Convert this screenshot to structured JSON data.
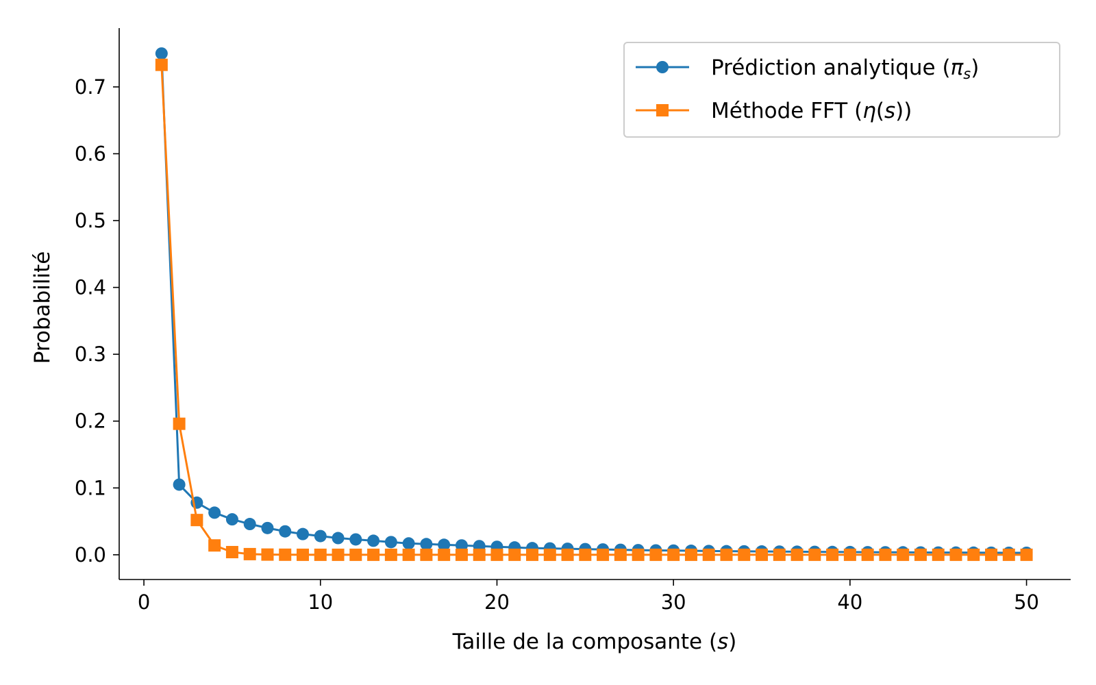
{
  "chart_data": {
    "type": "line",
    "title": "",
    "xlabel_main": "Taille de la composante (",
    "xlabel_var": "s",
    "xlabel_close": ")",
    "ylabel": "Probabilité",
    "xlim": [
      -1.4,
      52.5
    ],
    "ylim": [
      -0.037,
      0.788
    ],
    "xticks": [
      0,
      10,
      20,
      30,
      40,
      50
    ],
    "xtick_labels": [
      "0",
      "10",
      "20",
      "30",
      "40",
      "50"
    ],
    "yticks": [
      0.0,
      0.1,
      0.2,
      0.3,
      0.4,
      0.5,
      0.6,
      0.7
    ],
    "ytick_labels": [
      "0.0",
      "0.1",
      "0.2",
      "0.3",
      "0.4",
      "0.5",
      "0.6",
      "0.7"
    ],
    "grid": false,
    "legend_position": "top-right",
    "x": [
      1,
      2,
      3,
      4,
      5,
      6,
      7,
      8,
      9,
      10,
      11,
      12,
      13,
      14,
      15,
      16,
      17,
      18,
      19,
      20,
      21,
      22,
      23,
      24,
      25,
      26,
      27,
      28,
      29,
      30,
      31,
      32,
      33,
      34,
      35,
      36,
      37,
      38,
      39,
      40,
      41,
      42,
      43,
      44,
      45,
      46,
      47,
      48,
      49,
      50
    ],
    "series": [
      {
        "name": "Prédiction analytique (π_s)",
        "legend_main": "Prédiction analytique (",
        "legend_sym": "π",
        "legend_sub": "s",
        "legend_close": ")",
        "color": "#1f77b4",
        "marker": "circle",
        "values": [
          0.75,
          0.105,
          0.078,
          0.063,
          0.053,
          0.046,
          0.04,
          0.035,
          0.031,
          0.028,
          0.025,
          0.023,
          0.021,
          0.019,
          0.017,
          0.016,
          0.015,
          0.014,
          0.013,
          0.012,
          0.011,
          0.01,
          0.0095,
          0.009,
          0.0085,
          0.008,
          0.0075,
          0.007,
          0.0066,
          0.0063,
          0.006,
          0.0057,
          0.0054,
          0.0052,
          0.005,
          0.0048,
          0.0046,
          0.0044,
          0.0042,
          0.0041,
          0.0039,
          0.0038,
          0.0037,
          0.0035,
          0.0034,
          0.0033,
          0.0032,
          0.0031,
          0.003,
          0.003
        ]
      },
      {
        "name": "Méthode FFT (η(s))",
        "legend_main": "Méthode FFT (",
        "legend_sym": "η",
        "legend_mid": "(",
        "legend_var": "s",
        "legend_close": "))",
        "color": "#ff7f0e",
        "marker": "square",
        "values": [
          0.733,
          0.196,
          0.052,
          0.014,
          0.004,
          0.001,
          0.0003,
          0.0001,
          0,
          0,
          0,
          0,
          0,
          0,
          0,
          0,
          0,
          0,
          0,
          0,
          0,
          0,
          0,
          0,
          0,
          0,
          0,
          0,
          0,
          0,
          0,
          0,
          0,
          0,
          0,
          0,
          0,
          0,
          0,
          0,
          0,
          0,
          0,
          0,
          0,
          0,
          0,
          0,
          0,
          0
        ]
      }
    ]
  }
}
